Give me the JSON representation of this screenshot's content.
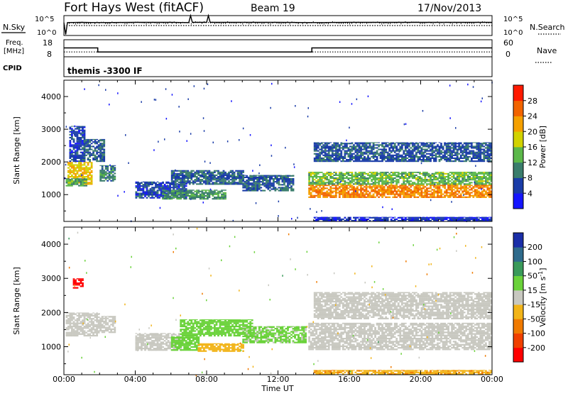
{
  "header": {
    "station": "Fort Hays West (fitACF)",
    "beam": "Beam 19",
    "date": "17/Nov/2013"
  },
  "panel_labels": {
    "nsky": "N.Sky",
    "nsearch": "N.Search",
    "freq_line1": "Freq.",
    "freq_line2": "[MHz]",
    "nave": "Nave",
    "cpid": "CPID"
  },
  "cpid_text": "themis -3300 IF",
  "noise_panel": {
    "left_ticks": [
      "10^5",
      "10^0"
    ],
    "right_ticks": [
      "10^5",
      "10^0"
    ]
  },
  "freq_panel": {
    "left_ticks": [
      "18",
      "8"
    ],
    "right_ticks": [
      "60",
      "0"
    ]
  },
  "axes": {
    "xlabel": "Time UT",
    "x_ticks": [
      "00:00",
      "04:00",
      "08:00",
      "12:00",
      "16:00",
      "20:00",
      "00:00"
    ],
    "ylabel": "Slant Range [km]",
    "y_ticks": [
      "1000",
      "2000",
      "3000",
      "4000"
    ]
  },
  "colorbars": {
    "power": {
      "label": "Power [dB]",
      "ticks": [
        "4",
        "8",
        "12",
        "16",
        "20",
        "24",
        "28"
      ],
      "colors": [
        "#1515ff",
        "#1a3ca8",
        "#3a7d6c",
        "#5cb84a",
        "#d2d200",
        "#f5a000",
        "#f26400",
        "#ff1a00"
      ]
    },
    "velocity": {
      "label_main": "Velocity [m s",
      "label_sup": "-1",
      "label_end": "]",
      "ticks": [
        "200",
        "100",
        "50",
        "15",
        "-15",
        "-50",
        "-100",
        "-200"
      ],
      "colors": [
        "#1a2ea8",
        "#2f6b8c",
        "#3a9a5a",
        "#6ad23a",
        "#c8c8c0",
        "#f2b418",
        "#f07a00",
        "#f04000",
        "#ff0000"
      ]
    }
  },
  "chart_data": [
    {
      "type": "line",
      "title": "Fort Hays West (fitACF)  Beam 19  17/Nov/2013",
      "xlabel": "",
      "ylabel": "N.Sky / N.Search",
      "x_range_hours": [
        0,
        24
      ],
      "series": [
        {
          "name": "N.Sky",
          "style": "solid",
          "x": [
            0,
            0.1,
            0.2,
            1,
            2,
            4,
            6,
            7.0,
            7.1,
            7.2,
            8,
            8.1,
            8.2,
            10,
            12,
            14,
            16,
            18,
            20,
            22,
            24
          ],
          "y_fraction_of_axis": [
            0.65,
            0.05,
            0.65,
            0.66,
            0.65,
            0.66,
            0.66,
            0.65,
            1.0,
            0.66,
            0.66,
            1.0,
            0.66,
            0.66,
            0.66,
            0.65,
            0.66,
            0.66,
            0.66,
            0.66,
            0.66
          ]
        },
        {
          "name": "N.Search",
          "style": "dotted",
          "x": [
            0,
            24
          ],
          "y_fraction_of_axis": [
            0.5,
            0.5
          ]
        }
      ]
    },
    {
      "type": "line",
      "title": "",
      "xlabel": "",
      "ylabel": "Freq. [MHz] / Nave",
      "x_range_hours": [
        0,
        24
      ],
      "series": [
        {
          "name": "Freq.",
          "style": "solid-step",
          "x": [
            0,
            1.9,
            1.9,
            13.9,
            13.9,
            24
          ],
          "y": [
            13.2,
            13.2,
            10.8,
            10.8,
            13.2,
            13.2
          ],
          "ylim": [
            8,
            18
          ]
        },
        {
          "name": "Nave",
          "style": "dotted",
          "x": [
            0,
            24
          ],
          "y": [
            17,
            17
          ],
          "ylim": [
            0,
            60
          ]
        }
      ]
    },
    {
      "type": "heatmap",
      "title": "",
      "variable": "Power",
      "unit": "dB",
      "xlabel": "Time UT",
      "ylabel": "Slant Range [km]",
      "xlim_hours": [
        0,
        24
      ],
      "ylim_km": [
        180,
        4500
      ],
      "clim": [
        0,
        32
      ],
      "regions": [
        {
          "t0": 0.2,
          "t1": 1.6,
          "r0": 1300,
          "r1": 2000,
          "level": 20
        },
        {
          "t0": 0.1,
          "t1": 1.3,
          "r0": 1250,
          "r1": 1500,
          "level": 12
        },
        {
          "t0": 0.3,
          "t1": 1.2,
          "r0": 2000,
          "r1": 3100,
          "level": 6
        },
        {
          "t0": 1.1,
          "t1": 2.3,
          "r0": 2000,
          "r1": 2700,
          "level": 8
        },
        {
          "t0": 2.0,
          "t1": 2.9,
          "r0": 1400,
          "r1": 1900,
          "level": 10
        },
        {
          "t0": 4.0,
          "t1": 6.8,
          "r0": 880,
          "r1": 1400,
          "level": 6
        },
        {
          "t0": 6.0,
          "t1": 10.0,
          "r0": 1300,
          "r1": 1750,
          "level": 8
        },
        {
          "t0": 5.5,
          "t1": 9.0,
          "r0": 850,
          "r1": 1150,
          "level": 11
        },
        {
          "t0": 10.0,
          "t1": 12.8,
          "r0": 1100,
          "r1": 1600,
          "level": 8
        },
        {
          "t0": 13.7,
          "t1": 24.0,
          "r0": 900,
          "r1": 1300,
          "level": 24
        },
        {
          "t0": 13.7,
          "t1": 24.0,
          "r0": 1300,
          "r1": 1700,
          "level": 14
        },
        {
          "t0": 14.0,
          "t1": 24.0,
          "r0": 2000,
          "r1": 2600,
          "level": 7
        },
        {
          "t0": 14.0,
          "t1": 24.0,
          "r0": 180,
          "r1": 320,
          "level": 5
        }
      ]
    },
    {
      "type": "heatmap",
      "title": "",
      "variable": "Velocity",
      "unit": "m s^-1",
      "xlabel": "Time UT",
      "ylabel": "Slant Range [km]",
      "xlim_hours": [
        0,
        24
      ],
      "ylim_km": [
        180,
        4500
      ],
      "clim": [
        -250,
        250
      ],
      "regions": [
        {
          "t0": 0.1,
          "t1": 2.0,
          "r0": 1300,
          "r1": 2000,
          "value": 0
        },
        {
          "t0": 0.5,
          "t1": 1.0,
          "r0": 2700,
          "r1": 3000,
          "value": -230
        },
        {
          "t0": 2.0,
          "t1": 2.9,
          "r0": 1400,
          "r1": 1900,
          "value": 0
        },
        {
          "t0": 4.0,
          "t1": 6.5,
          "r0": 880,
          "r1": 1400,
          "value": 0
        },
        {
          "t0": 6.0,
          "t1": 7.5,
          "r0": 880,
          "r1": 1300,
          "value": 30
        },
        {
          "t0": 7.5,
          "t1": 10.0,
          "r0": 850,
          "r1": 1100,
          "value": -35
        },
        {
          "t0": 6.5,
          "t1": 10.5,
          "r0": 1300,
          "r1": 1800,
          "value": 30
        },
        {
          "t0": 10.0,
          "t1": 13.5,
          "r0": 1100,
          "r1": 1600,
          "value": 25
        },
        {
          "t0": 13.7,
          "t1": 24.0,
          "r0": 900,
          "r1": 1700,
          "value": 0
        },
        {
          "t0": 14.0,
          "t1": 24.0,
          "r0": 1800,
          "r1": 2600,
          "value": 0
        },
        {
          "t0": 14.0,
          "t1": 24.0,
          "r0": 180,
          "r1": 320,
          "value": -40
        }
      ]
    }
  ]
}
